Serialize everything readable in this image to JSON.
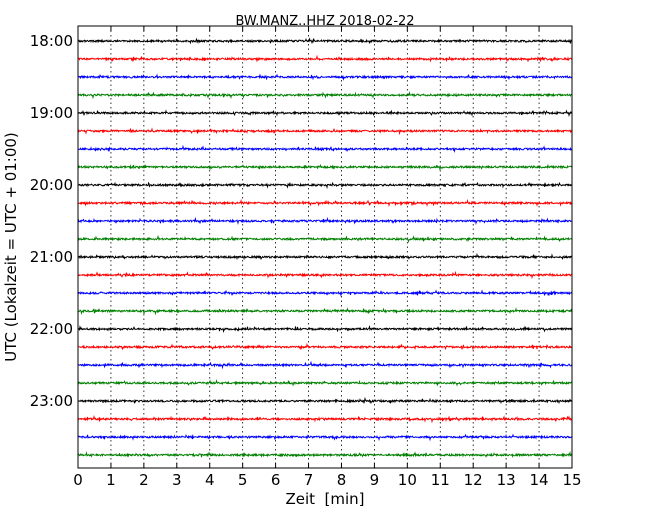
{
  "chart_data": {
    "type": "line",
    "title": "BW.MANZ..HHZ 2018-02-22",
    "xlabel": "Zeit  [min]",
    "ylabel": "UTC (Lokalzeit = UTC + 01:00)",
    "xlim": [
      0,
      15
    ],
    "x_ticks": [
      "0",
      "1",
      "2",
      "3",
      "4",
      "5",
      "6",
      "7",
      "8",
      "9",
      "10",
      "11",
      "12",
      "13",
      "14",
      "15"
    ],
    "y_ticks": [
      "18:00",
      "19:00",
      "20:00",
      "21:00",
      "22:00",
      "23:00"
    ],
    "grid": "vertical dotted",
    "minutes_per_line": 15,
    "start_time": "18:00",
    "color_cycle": [
      "#000000",
      "#ff0000",
      "#0000ff",
      "#008000"
    ],
    "series": [
      {
        "start": "18:00",
        "color": "#000000"
      },
      {
        "start": "18:15",
        "color": "#ff0000"
      },
      {
        "start": "18:30",
        "color": "#0000ff"
      },
      {
        "start": "18:45",
        "color": "#008000"
      },
      {
        "start": "19:00",
        "color": "#000000"
      },
      {
        "start": "19:15",
        "color": "#ff0000"
      },
      {
        "start": "19:30",
        "color": "#0000ff"
      },
      {
        "start": "19:45",
        "color": "#008000"
      },
      {
        "start": "20:00",
        "color": "#000000"
      },
      {
        "start": "20:15",
        "color": "#ff0000"
      },
      {
        "start": "20:30",
        "color": "#0000ff"
      },
      {
        "start": "20:45",
        "color": "#008000"
      },
      {
        "start": "21:00",
        "color": "#000000"
      },
      {
        "start": "21:15",
        "color": "#ff0000"
      },
      {
        "start": "21:30",
        "color": "#0000ff"
      },
      {
        "start": "21:45",
        "color": "#008000"
      },
      {
        "start": "22:00",
        "color": "#000000"
      },
      {
        "start": "22:15",
        "color": "#ff0000"
      },
      {
        "start": "22:30",
        "color": "#0000ff"
      },
      {
        "start": "22:45",
        "color": "#008000"
      },
      {
        "start": "23:00",
        "color": "#000000"
      },
      {
        "start": "23:15",
        "color": "#ff0000"
      },
      {
        "start": "23:30",
        "color": "#0000ff"
      },
      {
        "start": "23:45",
        "color": "#008000"
      }
    ]
  }
}
